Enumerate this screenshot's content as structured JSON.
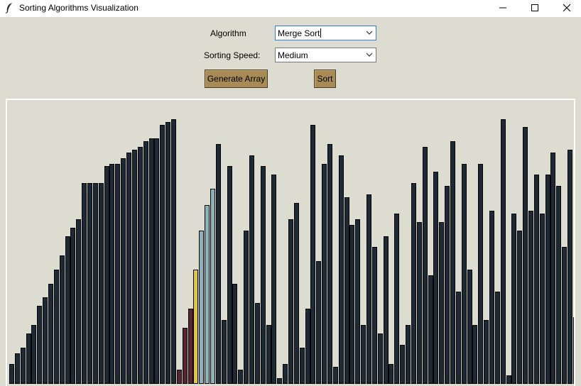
{
  "window": {
    "title": "Sorting Algorithms Visualization",
    "icons": {
      "app": "feather-icon",
      "minimize": "minimize-icon",
      "maximize": "maximize-icon",
      "close": "close-icon"
    }
  },
  "controls": {
    "algorithm_label": "Algorithm",
    "algorithm_value": "Merge Sort",
    "speed_label": "Sorting Speed:",
    "speed_value": "Medium",
    "generate_button": "Generate Array",
    "sort_button": "Sort"
  },
  "colors": {
    "background": "#dcdcd0",
    "button": "#a88a55",
    "bar_default": "#1c2a35",
    "bar_left_half": "#5a2436",
    "bar_compare": "#e3c63b",
    "bar_right_half": "#8eb0b8"
  },
  "array": {
    "max_value": 100,
    "values": [
      7,
      11,
      13,
      18,
      21,
      28,
      31,
      36,
      41,
      46,
      53,
      56,
      59,
      72,
      72,
      72,
      72,
      78,
      79,
      79,
      81,
      83,
      84,
      85,
      87,
      88,
      88,
      93,
      94,
      95,
      5,
      20,
      27,
      41,
      55,
      64,
      70,
      86,
      23,
      78,
      36,
      5,
      55,
      82,
      29,
      78,
      21,
      75,
      2,
      7,
      59,
      65,
      13,
      27,
      93,
      44,
      79,
      86,
      6,
      82,
      67,
      57,
      59,
      21,
      68,
      49,
      18,
      53,
      7,
      61,
      14,
      21,
      72,
      58,
      85,
      39,
      76,
      58,
      71,
      87,
      33,
      79,
      41,
      21,
      79,
      23,
      62,
      33,
      95,
      3,
      61,
      55,
      92,
      62,
      75,
      61,
      75,
      83,
      71,
      49,
      84,
      24,
      79,
      56,
      56,
      24,
      70,
      44,
      35,
      40,
      13,
      13,
      15,
      40,
      3,
      83,
      28,
      95,
      73,
      58
    ],
    "state": {
      "left_half": [
        30,
        31,
        32
      ],
      "compare": [
        33
      ],
      "right_half": [
        34,
        35,
        36
      ]
    }
  }
}
